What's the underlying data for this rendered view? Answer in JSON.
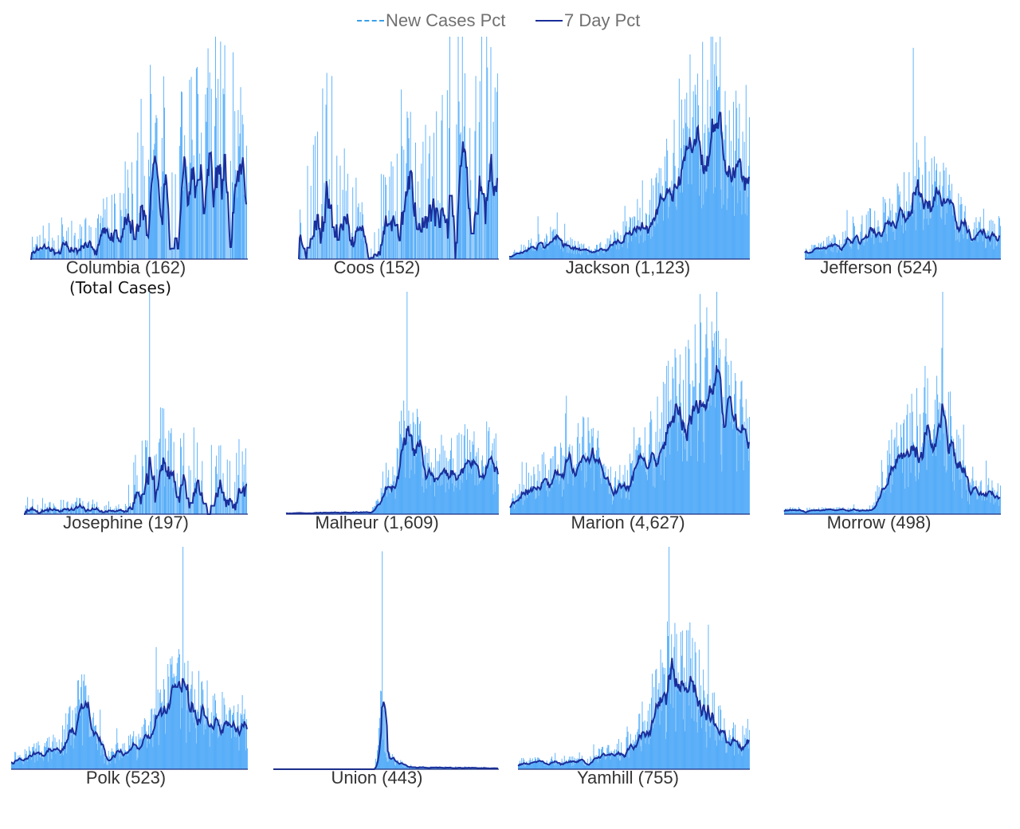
{
  "legend": {
    "new_cases_label": "New Cases Pct",
    "seven_day_label": "7 Day Pct"
  },
  "colors": {
    "bars": "#59b0fb",
    "bar_fill": "#4aa6f6",
    "line": "#1a2e9a",
    "legend_new": "#3aa0e8",
    "text": "#333333"
  },
  "chart_data": [
    {
      "type": "bar",
      "county": "Columbia",
      "total_cases": "162",
      "title": "Columbia (162)",
      "subtitle": "(Total Cases)",
      "seed": 11,
      "profile": [
        [
          0,
          0.05
        ],
        [
          0.4,
          0.12
        ],
        [
          0.55,
          0.35
        ],
        [
          0.7,
          0.3
        ],
        [
          0.85,
          0.4
        ],
        [
          1,
          0.35
        ]
      ],
      "sparse": true,
      "peak": 1.0
    },
    {
      "type": "bar",
      "county": "Coos",
      "total_cases": "152",
      "title": "Coos (152)",
      "subtitle": "",
      "seed": 23,
      "profile": [
        [
          0,
          0.15
        ],
        [
          0.15,
          0.35
        ],
        [
          0.35,
          0.05
        ],
        [
          0.5,
          0.3
        ],
        [
          0.75,
          0.4
        ],
        [
          1,
          0.45
        ]
      ],
      "sparse": true,
      "peak": 1.0
    },
    {
      "type": "bar",
      "county": "Jackson",
      "total_cases": "1,123",
      "title": "Jackson (1,123)",
      "subtitle": "",
      "seed": 37,
      "profile": [
        [
          0,
          0.02
        ],
        [
          0.15,
          0.1
        ],
        [
          0.35,
          0.03
        ],
        [
          0.55,
          0.15
        ],
        [
          0.75,
          0.5
        ],
        [
          0.85,
          0.72
        ],
        [
          0.95,
          0.45
        ],
        [
          1,
          0.5
        ]
      ],
      "sparse": false,
      "peak": 0.92
    },
    {
      "type": "bar",
      "county": "Jefferson",
      "total_cases": "524",
      "title": "Jefferson (524)",
      "subtitle": "",
      "seed": 41,
      "profile": [
        [
          0,
          0.03
        ],
        [
          0.25,
          0.1
        ],
        [
          0.45,
          0.2
        ],
        [
          0.6,
          0.35
        ],
        [
          0.75,
          0.25
        ],
        [
          0.85,
          0.12
        ],
        [
          1,
          0.12
        ]
      ],
      "sparse": false,
      "peak": 0.95
    },
    {
      "type": "bar",
      "county": "Josephine",
      "total_cases": "197",
      "title": "Josephine (197)",
      "subtitle": "",
      "seed": 53,
      "profile": [
        [
          0,
          0.04
        ],
        [
          0.45,
          0.02
        ],
        [
          0.55,
          0.2
        ],
        [
          0.7,
          0.18
        ],
        [
          0.85,
          0.12
        ],
        [
          1,
          0.14
        ]
      ],
      "sparse": true,
      "peak": 1.0
    },
    {
      "type": "bar",
      "county": "Malheur",
      "total_cases": "1,609",
      "title": "Malheur (1,609)",
      "subtitle": "",
      "seed": 67,
      "profile": [
        [
          0,
          0.005
        ],
        [
          0.4,
          0.01
        ],
        [
          0.5,
          0.15
        ],
        [
          0.58,
          0.42
        ],
        [
          0.65,
          0.2
        ],
        [
          0.8,
          0.25
        ],
        [
          0.9,
          0.28
        ],
        [
          1,
          0.22
        ]
      ],
      "sparse": false,
      "peak": 1.0
    },
    {
      "type": "bar",
      "county": "Marion",
      "total_cases": "4,627",
      "title": "Marion (4,627)",
      "subtitle": "",
      "seed": 71,
      "profile": [
        [
          0,
          0.05
        ],
        [
          0.15,
          0.18
        ],
        [
          0.35,
          0.3
        ],
        [
          0.42,
          0.1
        ],
        [
          0.6,
          0.3
        ],
        [
          0.7,
          0.5
        ],
        [
          0.85,
          0.58
        ],
        [
          0.95,
          0.4
        ],
        [
          1,
          0.45
        ]
      ],
      "sparse": false,
      "peak": 0.99
    },
    {
      "type": "bar",
      "county": "Morrow",
      "total_cases": "498",
      "title": "Morrow (498)",
      "subtitle": "",
      "seed": 83,
      "profile": [
        [
          0,
          0.02
        ],
        [
          0.4,
          0.02
        ],
        [
          0.5,
          0.28
        ],
        [
          0.62,
          0.35
        ],
        [
          0.75,
          0.42
        ],
        [
          0.85,
          0.1
        ],
        [
          1,
          0.1
        ]
      ],
      "sparse": false,
      "peak": 1.0
    },
    {
      "type": "bar",
      "county": "Polk",
      "total_cases": "523",
      "title": "Polk (523)",
      "subtitle": "",
      "seed": 97,
      "profile": [
        [
          0,
          0.05
        ],
        [
          0.2,
          0.1
        ],
        [
          0.3,
          0.28
        ],
        [
          0.4,
          0.05
        ],
        [
          0.55,
          0.12
        ],
        [
          0.7,
          0.35
        ],
        [
          0.85,
          0.22
        ],
        [
          1,
          0.2
        ]
      ],
      "sparse": false,
      "peak": 1.0
    },
    {
      "type": "bar",
      "county": "Union",
      "total_cases": "443",
      "title": "Union (443)",
      "subtitle": "",
      "seed": 101,
      "profile": [
        [
          0,
          0.0
        ],
        [
          0.45,
          0.0
        ],
        [
          0.48,
          0.3
        ],
        [
          0.5,
          0.06
        ],
        [
          0.6,
          0.01
        ],
        [
          1,
          0.005
        ]
      ],
      "sparse": false,
      "peak": 0.98
    },
    {
      "type": "bar",
      "county": "Yamhill",
      "total_cases": "755",
      "title": "Yamhill (755)",
      "subtitle": "",
      "seed": 113,
      "profile": [
        [
          0,
          0.03
        ],
        [
          0.3,
          0.04
        ],
        [
          0.5,
          0.12
        ],
        [
          0.6,
          0.3
        ],
        [
          0.7,
          0.48
        ],
        [
          0.8,
          0.3
        ],
        [
          0.9,
          0.15
        ],
        [
          1,
          0.12
        ]
      ],
      "sparse": false,
      "peak": 1.0
    }
  ]
}
